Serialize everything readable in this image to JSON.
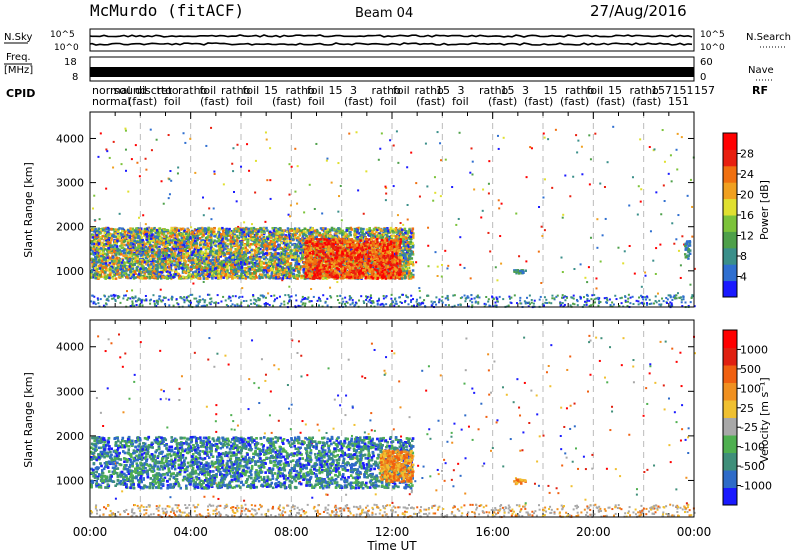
{
  "header": {
    "title": "McMurdo (fitACF)",
    "beam": "Beam 04",
    "date": "27/Aug/2016"
  },
  "side_labels": {
    "nsky": "N.Sky",
    "nsearch": "N.Search",
    "freq": "Freq.",
    "freq_unit": "[MHz]",
    "nave": "Nave",
    "cpid": "CPID",
    "cpid_right": "RF"
  },
  "noise_axis": {
    "left_ticks": [
      "10^5",
      "10^0"
    ],
    "right_ticks": [
      "10^5",
      "10^0"
    ]
  },
  "freq_axis": {
    "left_ticks": [
      "18",
      "8"
    ],
    "right_ticks": [
      "60",
      "0"
    ]
  },
  "cpid_rows": {
    "row1": [
      "normal",
      "sound",
      "discret",
      "ttoo",
      "ratho",
      "foil",
      "ratho",
      "foil",
      "15",
      "ratho",
      "foil",
      "15",
      "3",
      "ratho",
      "foil",
      "ratho",
      "15",
      "3",
      "ratho",
      "15",
      "3",
      "15",
      "ratho",
      "foil",
      "15",
      "ratho",
      "157",
      "151",
      "157"
    ],
    "row2": [
      "normal",
      "(fast)",
      "foil",
      "(fast)",
      "foil",
      "(fast)",
      "foil",
      "(fast)",
      "foil",
      "(fast)",
      "foil",
      "(fast)",
      "(fast)",
      "(fast)",
      "(fast)",
      "(fast)",
      "151"
    ]
  },
  "chart_data": [
    {
      "type": "heatmap",
      "title": "Power",
      "xlabel": "",
      "ylabel": "Slant Range [km]",
      "xlim": [
        0,
        24
      ],
      "ylim": [
        180,
        4600
      ],
      "yticks": [
        1000,
        2000,
        3000,
        4000
      ],
      "colorbar_label": "Power [dB]",
      "colorbar_ticks": [
        "4",
        "8",
        "12",
        "16",
        "20",
        "24",
        "28"
      ],
      "colorbar_colors": [
        "#1a1aff",
        "#2f6fd0",
        "#3a8f8a",
        "#4ea04a",
        "#7cc33a",
        "#e0e030",
        "#f0a020",
        "#f07010",
        "#e82010",
        "#ff0000"
      ],
      "regions": [
        {
          "t0": 0.0,
          "t1": 12.8,
          "r0": 850,
          "r1": 2000,
          "level": "mixed"
        },
        {
          "t0": 8.5,
          "t1": 12.3,
          "r0": 850,
          "r1": 1750,
          "level": "high"
        },
        {
          "t0": 16.8,
          "t1": 17.3,
          "r0": 950,
          "r1": 1050,
          "level": "low"
        },
        {
          "t0": 23.6,
          "t1": 23.8,
          "r0": 1300,
          "r1": 1700,
          "level": "low"
        }
      ]
    },
    {
      "type": "heatmap",
      "title": "Velocity",
      "xlabel": "Time UT",
      "ylabel": "Slant Range [km]",
      "xlim": [
        0,
        24
      ],
      "ylim": [
        180,
        4600
      ],
      "yticks": [
        1000,
        2000,
        3000,
        4000
      ],
      "xticks": [
        "00:00",
        "04:00",
        "08:00",
        "12:00",
        "16:00",
        "20:00",
        "00:00"
      ],
      "colorbar_label": "Velocity [m s⁻¹]",
      "colorbar_ticks": [
        "1000",
        "500",
        "100",
        "25",
        "-25",
        "-100",
        "-500",
        "-1000"
      ],
      "colorbar_colors": [
        "#1a1aff",
        "#2e6bc8",
        "#3f8f7a",
        "#4fb050",
        "#a8a8a8",
        "#f0c030",
        "#f09020",
        "#f06010",
        "#e02010",
        "#ff0000"
      ],
      "regions": [
        {
          "t0": 0.0,
          "t1": 12.8,
          "r0": 850,
          "r1": 2000,
          "level": "green"
        },
        {
          "t0": 11.5,
          "t1": 12.8,
          "r0": 1000,
          "r1": 1700,
          "level": "orange"
        },
        {
          "t0": 16.8,
          "t1": 17.3,
          "r0": 950,
          "r1": 1050,
          "level": "orange"
        }
      ]
    }
  ]
}
